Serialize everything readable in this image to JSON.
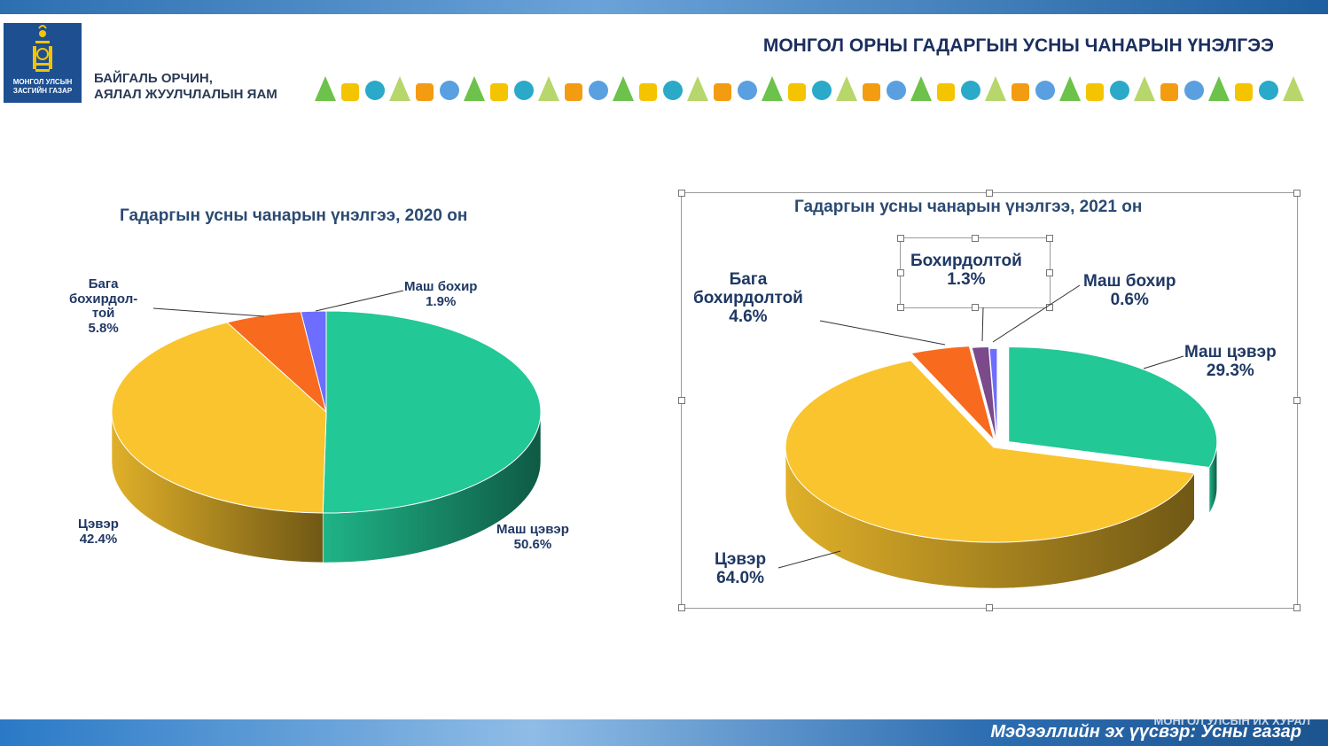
{
  "header": {
    "logo_text_1": "МОНГОЛ УЛСЫН",
    "logo_text_2": "ЗАСГИЙН ГАЗАР",
    "ministry_line_1": "БАЙГАЛЬ ОРЧИН,",
    "ministry_line_2": "АЯЛАЛ ЖУУЛЧЛАЛЫН ЯАМ",
    "title": "МОНГОЛ ОРНЫ ГАДАРГЫН УСНЫ ЧАНАРЫН ҮНЭЛГЭЭ"
  },
  "footer": {
    "source": "Мэдээллийн эх үүсвэр: Усны газар",
    "watermark": "МОНГОЛ УЛСЫН ИХ ХУРАЛ"
  },
  "colors": {
    "very_clean": "#22c896",
    "clean": "#f9c42e",
    "slightly_polluted": "#f86a1e",
    "polluted": "#7a4a8a",
    "very_polluted": "#6d6dff"
  },
  "chart_data": [
    {
      "type": "pie",
      "title": "Гадаргын усны чанарын үнэлгээ, 2020 он",
      "slices": [
        {
          "label": "Маш цэвэр",
          "label_lines": [
            "Маш цэвэр"
          ],
          "value": 50.6,
          "value_text": "50.6%",
          "color": "#22c896"
        },
        {
          "label": "Цэвэр",
          "label_lines": [
            "Цэвэр"
          ],
          "value": 42.4,
          "value_text": "42.4%",
          "color": "#f9c42e"
        },
        {
          "label": "Бага бохирдолтой",
          "label_lines": [
            "Бага",
            "бохирдол-",
            "той"
          ],
          "value": 5.8,
          "value_text": "5.8%",
          "color": "#f86a1e"
        },
        {
          "label": "Маш бохир",
          "label_lines": [
            "Маш бохир"
          ],
          "value": 1.9,
          "value_text": "1.9%",
          "color": "#6d6dff"
        }
      ]
    },
    {
      "type": "pie",
      "title": "Гадаргын усны чанарын үнэлгээ, 2021 он",
      "slices": [
        {
          "label": "Маш цэвэр",
          "label_lines": [
            "Маш цэвэр"
          ],
          "value": 29.3,
          "value_text": "29.3%",
          "color": "#22c896"
        },
        {
          "label": "Цэвэр",
          "label_lines": [
            "Цэвэр"
          ],
          "value": 64.0,
          "value_text": "64.0%",
          "color": "#f9c42e"
        },
        {
          "label": "Бага бохирдолтой",
          "label_lines": [
            "Бага",
            "бохирдолтой"
          ],
          "value": 4.6,
          "value_text": "4.6%",
          "color": "#f86a1e"
        },
        {
          "label": "Бохирдолтой",
          "label_lines": [
            "Бохирдолтой"
          ],
          "value": 1.3,
          "value_text": "1.3%",
          "color": "#7a4a8a"
        },
        {
          "label": "Маш бохир",
          "label_lines": [
            "Маш бохир"
          ],
          "value": 0.6,
          "value_text": "0.6%",
          "color": "#6d6dff"
        }
      ]
    }
  ]
}
